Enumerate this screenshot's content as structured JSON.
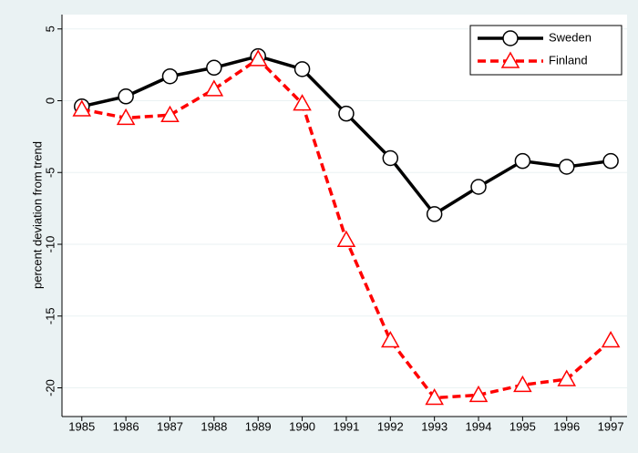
{
  "chart_data": {
    "type": "line",
    "y_label": "percent deviation from trend",
    "x": [
      1985,
      1986,
      1987,
      1988,
      1989,
      1990,
      1991,
      1992,
      1993,
      1994,
      1995,
      1996,
      1997
    ],
    "series": [
      {
        "name": "Sweden",
        "color": "#000000",
        "marker": "circle",
        "dash": "solid",
        "values": [
          -0.4,
          0.3,
          1.7,
          2.3,
          3.1,
          2.2,
          -0.9,
          -4.0,
          -7.9,
          -6.0,
          -4.2,
          -4.6,
          -4.2
        ]
      },
      {
        "name": "Finland",
        "color": "#ff0000",
        "marker": "triangle",
        "dash": "dashed",
        "values": [
          -0.6,
          -1.2,
          -1.0,
          0.8,
          2.9,
          -0.2,
          -9.7,
          -16.7,
          -20.7,
          -20.5,
          -19.8,
          -19.4,
          -16.7
        ]
      }
    ],
    "xlim": [
      1984.55,
      1997.37
    ],
    "xticks": [
      1985,
      1986,
      1987,
      1988,
      1989,
      1990,
      1991,
      1992,
      1993,
      1994,
      1995,
      1996,
      1997
    ],
    "ylim": [
      -22,
      6
    ],
    "yticks": [
      -20,
      -15,
      -10,
      -5,
      0,
      5
    ],
    "grid": true,
    "legend": "top-right"
  }
}
